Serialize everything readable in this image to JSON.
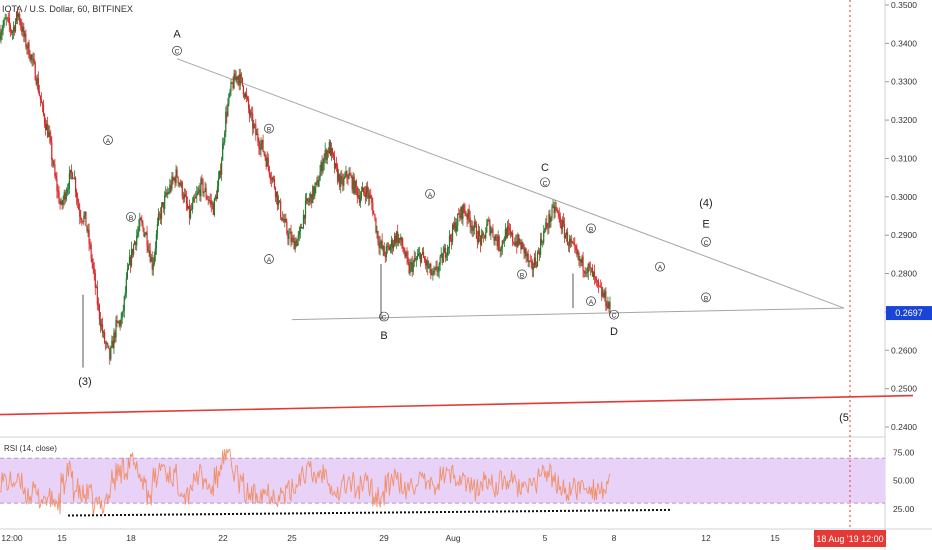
{
  "header": {
    "symbol_title": "IOTA / U.S. Dollar, 60, BITFINEX"
  },
  "rsi_panel": {
    "title": "RSI (14, close)"
  },
  "colors": {
    "up": "#26a69a",
    "up_body": "#1f7a2e",
    "down": "#d62728",
    "rsi_line": "#f0916c",
    "rsi_band": "#e8d2f7",
    "support": "#e53935",
    "triangle": "#a6a6a6",
    "price_tag": "#1a44d6",
    "date_tag": "#e53935"
  },
  "chart_data": [
    {
      "type": "candlestick",
      "title": "IOTA / U.S. Dollar, 60, BITFINEX",
      "ylim": [
        0.2375,
        0.3525
      ],
      "y_ticks": [
        "0.3500",
        "0.3400",
        "0.3300",
        "0.3200",
        "0.3100",
        "0.3000",
        "0.2900",
        "0.2800",
        "0.2700",
        "0.2600",
        "0.2500",
        "0.2400"
      ],
      "x_ticks": [
        "12:00",
        "15",
        "18",
        "22",
        "25",
        "29",
        "Aug",
        "5",
        "8",
        "12",
        "15"
      ],
      "last_price": "0.2697",
      "date_marker": "18 Aug '19  12:00",
      "price_path": [
        [
          0.343,
          0.346,
          0.343,
          0.348,
          0.341,
          0.337,
          0.331,
          0.322,
          0.316,
          0.305,
          0.297,
          0.303,
          0.307,
          0.296
        ],
        [
          0.294,
          0.284,
          0.272,
          0.263,
          0.258,
          0.266,
          0.268,
          0.281,
          0.288,
          0.293,
          0.29,
          0.282,
          0.294,
          0.299
        ],
        [
          0.303,
          0.306,
          0.301,
          0.295,
          0.299,
          0.303,
          0.3,
          0.297,
          0.305,
          0.321,
          0.329,
          0.332,
          0.328,
          0.321
        ],
        [
          0.316,
          0.313,
          0.308,
          0.303,
          0.296,
          0.291,
          0.288,
          0.289,
          0.297,
          0.3,
          0.303,
          0.31,
          0.313,
          0.307
        ],
        [
          0.303,
          0.306,
          0.303,
          0.3,
          0.302,
          0.298,
          0.289,
          0.285,
          0.287,
          0.29,
          0.287,
          0.281,
          0.283,
          0.285
        ],
        [
          0.282,
          0.279,
          0.282,
          0.286,
          0.29,
          0.294,
          0.297,
          0.294,
          0.291,
          0.288,
          0.293,
          0.29,
          0.287,
          0.291
        ],
        [
          0.289,
          0.288,
          0.286,
          0.281,
          0.284,
          0.29,
          0.294,
          0.297,
          0.293,
          0.289,
          0.286,
          0.283,
          0.282,
          0.28
        ],
        [
          0.276,
          0.274,
          0.271
        ]
      ],
      "annotations": [
        {
          "label": "A",
          "price": 0.3415,
          "date": "Jul 20"
        },
        {
          "label": "C",
          "price": 0.3373,
          "date": "Jul 20",
          "circled": true
        },
        {
          "label": "A",
          "price": 0.314,
          "date": "Jul 17",
          "circled": true
        },
        {
          "label": "B",
          "price": 0.294,
          "date": "Jul 18",
          "circled": true
        },
        {
          "label": "B",
          "price": 0.317,
          "date": "Jul 24",
          "circled": true
        },
        {
          "label": "A",
          "price": 0.283,
          "date": "Jul 24",
          "circled": true
        },
        {
          "label": "C",
          "price": 0.268,
          "date": "Jul 29",
          "circled": true
        },
        {
          "label": "B",
          "price": 0.263,
          "date": "Jul 29"
        },
        {
          "label": "(3)",
          "price": 0.251,
          "date": "Jul 16"
        },
        {
          "label": "A",
          "price": 0.3,
          "date": "Jul 31",
          "circled": true
        },
        {
          "label": "B",
          "price": 0.279,
          "date": "Aug 4",
          "circled": true
        },
        {
          "label": "C",
          "price": 0.3067,
          "date": "Aug 5"
        },
        {
          "label": "C",
          "price": 0.303,
          "date": "Aug 5",
          "circled": true
        },
        {
          "label": "B",
          "price": 0.291,
          "date": "Aug 7",
          "circled": true
        },
        {
          "label": "A",
          "price": 0.272,
          "date": "Aug 7",
          "circled": true
        },
        {
          "label": "C",
          "price": 0.2685,
          "date": "Aug 8",
          "circled": true
        },
        {
          "label": "D",
          "price": 0.264,
          "date": "Aug 8"
        },
        {
          "label": "A",
          "price": 0.281,
          "date": "Aug 10",
          "circled": true
        },
        {
          "label": "B",
          "price": 0.273,
          "date": "Aug 12",
          "circled": true
        },
        {
          "label": "C",
          "price": 0.2875,
          "date": "Aug 12",
          "circled": true
        },
        {
          "label": "E",
          "price": 0.292,
          "date": "Aug 12"
        },
        {
          "label": "(4)",
          "price": 0.2975,
          "date": "Aug 12"
        },
        {
          "label": "(5",
          "price": 0.2415,
          "date": "Aug 18"
        }
      ],
      "trendlines": [
        {
          "name": "triangle-upper",
          "from": {
            "date": "Jul 20",
            "price": 0.336
          },
          "to": {
            "date": "Aug 18",
            "price": 0.271
          }
        },
        {
          "name": "triangle-lower",
          "from": {
            "date": "Jul 25",
            "price": 0.268
          },
          "to": {
            "date": "Aug 18",
            "price": 0.271
          }
        },
        {
          "name": "support",
          "from": {
            "date": "Jul 12",
            "price": 0.2432
          },
          "to": {
            "date": "Aug 21",
            "price": 0.2482
          }
        }
      ]
    },
    {
      "type": "line",
      "title": "RSI (14, close)",
      "ylim": [
        15,
        80
      ],
      "y_ticks": [
        "75.00",
        "50.00",
        "25.00"
      ],
      "band": [
        30,
        70
      ]
    }
  ]
}
